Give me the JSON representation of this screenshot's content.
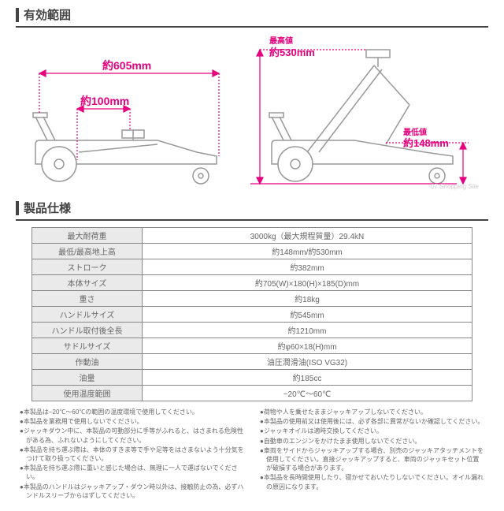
{
  "sections": {
    "range_title": "有効範囲",
    "spec_title": "製品仕様"
  },
  "diagram": {
    "width_label": "約605mm",
    "front_dist_label": "約100mm",
    "max_height_label_prefix": "最高値",
    "max_height_label": "約530mm",
    "min_height_label_prefix": "最低値",
    "min_height_label": "約148mm",
    "colors": {
      "outline": "#999",
      "dimension": "#e6007e",
      "fill": "#fff"
    }
  },
  "watermark": "07 Shopping Site",
  "specs": [
    {
      "label": "最大耐荷重",
      "value": "3000kg（最大規程質量）29.4kN"
    },
    {
      "label": "最低/最高地上高",
      "value": "約148mm/約530mm"
    },
    {
      "label": "ストローク",
      "value": "約382mm"
    },
    {
      "label": "本体サイズ",
      "value": "約705(W)×180(H)×185(D)mm"
    },
    {
      "label": "重さ",
      "value": "約18kg"
    },
    {
      "label": "ハンドルサイズ",
      "value": "約545mm"
    },
    {
      "label": "ハンドル取付後全長",
      "value": "約1210mm"
    },
    {
      "label": "サドルサイズ",
      "value": "約φ60×18(H)mm"
    },
    {
      "label": "作動油",
      "value": "油圧潤滑油(ISO VG32)"
    },
    {
      "label": "油量",
      "value": "約185cc"
    },
    {
      "label": "使用温度範囲",
      "value": "−20℃～60℃"
    }
  ],
  "notes_left": [
    "●本製品は−20℃～60℃の範囲の温度環境で使用してください。",
    "●本製品を業務用で使用しないでください。",
    "●ジャッキダウン中に、本製品の可動部分に手等がふれると、はさまれる危険性がある為、ふれないようにしてください。",
    "●本製品を持ち運ぶ際は、本体のすきま等で手や足等をはさまないよう十分気をつけて取り扱ってください。",
    "●本製品を持ち運ぶ際に重いと感じた場合は、無理に一人で運ばないでください。",
    "●本製品のハンドルはジャッキアップ・ダウン時以外は、接触防止の為、必ずハンドルスリーブからはずしてください。"
  ],
  "notes_right": [
    "●荷物や人を乗せたままジャッキアップしないでください。",
    "●本製品の使用前又は使用後には、必ず各部に異常がないか確認してください。",
    "●ジャッキオイルは適時交換してください。",
    "●自動車のエンジンをかけたまま使用しないでください。",
    "●車両をサイドからジャッキアップする場合、別売のジャッキアタッチメントを使用してください。直接ジャッキアップすると、車両のジャッキセット位置が破損する場合があります。",
    "●本製品を長時間使用したり、寝かせておいたりしないでください。オイル漏れの原因になります。"
  ]
}
